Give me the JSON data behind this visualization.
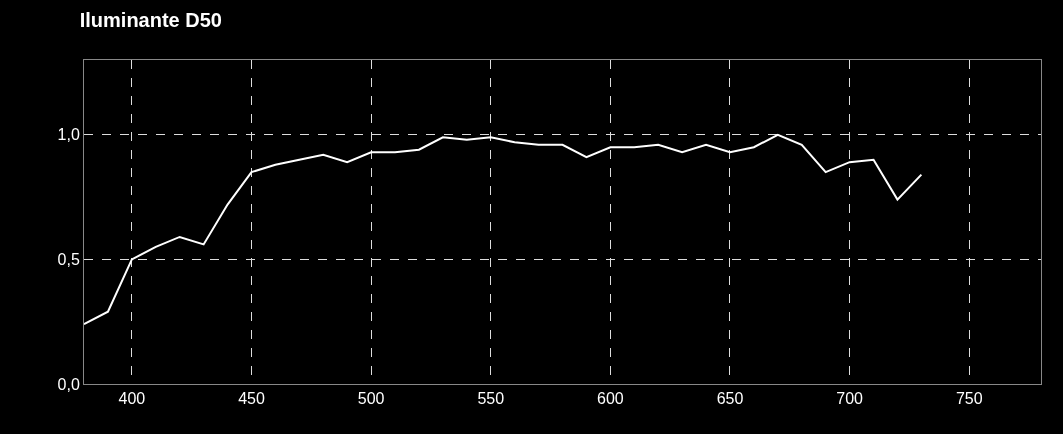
{
  "chart_data": {
    "type": "line",
    "title": "Iluminante D50",
    "x": [
      380,
      390,
      400,
      410,
      420,
      430,
      440,
      450,
      460,
      470,
      480,
      490,
      500,
      510,
      520,
      530,
      540,
      550,
      560,
      570,
      580,
      590,
      600,
      610,
      620,
      630,
      640,
      650,
      660,
      670,
      680,
      690,
      700,
      710,
      720,
      730
    ],
    "series": [
      {
        "color": "#ffffff",
        "values": [
          0.24,
          0.29,
          0.5,
          0.55,
          0.59,
          0.56,
          0.72,
          0.85,
          0.88,
          0.9,
          0.92,
          0.89,
          0.93,
          0.93,
          0.94,
          0.99,
          0.98,
          0.99,
          0.97,
          0.96,
          0.96,
          0.91,
          0.95,
          0.95,
          0.96,
          0.93,
          0.96,
          0.93,
          0.95,
          1.0,
          0.96,
          0.85,
          0.89,
          0.9,
          0.74,
          0.84
        ]
      }
    ],
    "xlim": [
      380,
      780
    ],
    "xticks": [
      400,
      450,
      500,
      550,
      600,
      650,
      700,
      750
    ],
    "ylim": [
      0,
      1.3
    ],
    "yticks": [
      {
        "value": 0,
        "label": "0,0"
      },
      {
        "value": 0.5,
        "label": "0,5"
      },
      {
        "value": 1,
        "label": "1,0"
      }
    ],
    "grid": true,
    "legend": false,
    "line_style": "solid"
  }
}
